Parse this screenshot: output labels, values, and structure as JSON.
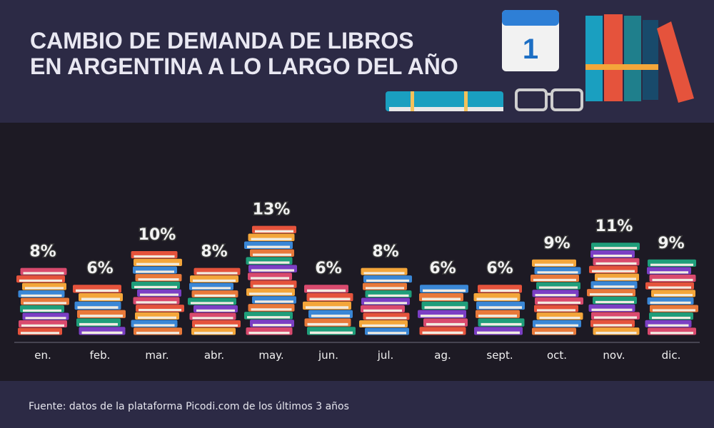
{
  "chart_data": {
    "type": "bar",
    "title_lines": [
      "CAMBIO DE DEMANDA DE LIBROS",
      "EN ARGENTINA A LO LARGO DEL AÑO"
    ],
    "categories": [
      "en.",
      "feb.",
      "mar.",
      "abr.",
      "may.",
      "jun.",
      "jul.",
      "ag.",
      "sept.",
      "oct.",
      "nov.",
      "dic."
    ],
    "values": [
      8,
      6,
      10,
      8,
      13,
      6,
      8,
      6,
      6,
      9,
      11,
      9
    ],
    "value_labels": [
      "8%",
      "6%",
      "10%",
      "8%",
      "13%",
      "6%",
      "8%",
      "6%",
      "6%",
      "9%",
      "11%",
      "9%"
    ],
    "source": "Fuente: datos de la plataforma Picodi.com de los últimos 3 años"
  },
  "illustration": {
    "calendar_day": "1"
  }
}
